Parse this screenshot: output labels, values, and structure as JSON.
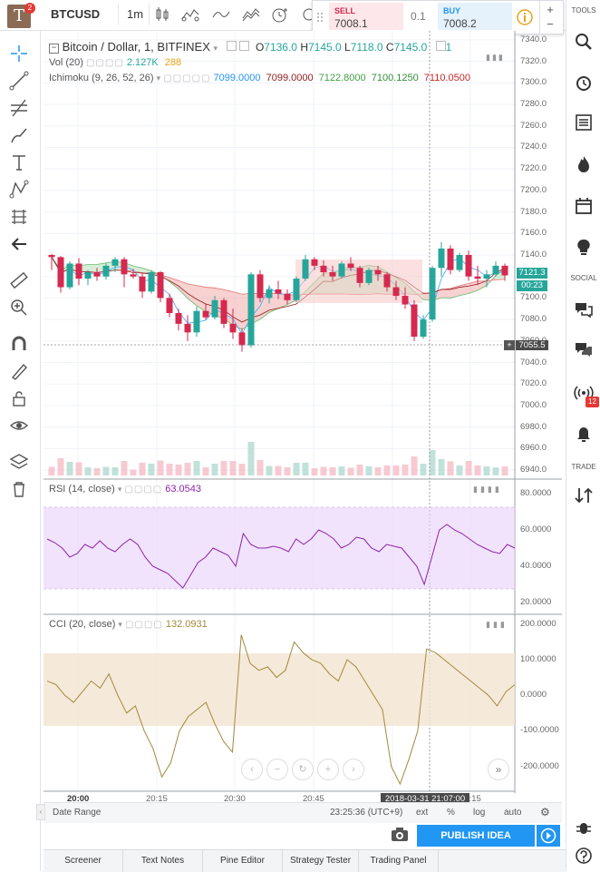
{
  "topbar": {
    "logo_letter": "T",
    "logo_badge": "2",
    "symbol": "BTCUSD",
    "interval": "1m",
    "trade": {
      "sell_label": "SELL",
      "sell_price": "7008.1",
      "spread": "0.1",
      "buy_label": "BUY",
      "buy_price": "7008.2"
    }
  },
  "main_legend": {
    "title": "Bitcoin / Dollar, 1, BITFINEX",
    "o_label": "O",
    "o_value": "7136.0",
    "h_label": "H",
    "h_value": "7145.0",
    "l_label": "L",
    "l_value": "7118.0",
    "c_label": "C",
    "c_value": "7145.0",
    "count": "1"
  },
  "vol_legend": {
    "name": "Vol (20)",
    "v1": "2.127K",
    "v2": "288"
  },
  "ichimoku_legend": {
    "name": "Ichimoku (9, 26, 52, 26)",
    "v1": "7099.0000",
    "v2": "7099.0000",
    "v3": "7122.8000",
    "v4": "7100.1250",
    "v5": "7110.0500"
  },
  "rsi_legend": {
    "name": "RSI (14, close)",
    "value": "63.0543"
  },
  "cci_legend": {
    "name": "CCI (20, close)",
    "value": "132.0931"
  },
  "price_axis": {
    "ticks": [
      "7340.0",
      "7320.0",
      "7300.0",
      "7280.0",
      "7260.0",
      "7240.0",
      "7220.0",
      "7200.0",
      "7180.0",
      "7160.0",
      "7140.0",
      "7120.0",
      "7100.0",
      "7080.0",
      "7060.0",
      "7040.0",
      "7020.0",
      "7000.0",
      "6980.0",
      "6960.0",
      "6940.0"
    ],
    "last_price": "7121.3",
    "countdown": "00:23",
    "crosshair_price": "7055.5"
  },
  "rsi_axis": {
    "ticks": [
      "80.0000",
      "60.0000",
      "40.0000",
      "20.0000"
    ]
  },
  "cci_axis": {
    "ticks": [
      "200.0000",
      "100.0000",
      "0.0000",
      "-100.0000",
      "-200.0000"
    ]
  },
  "time_axis": {
    "ticks": [
      "20:00",
      "20:15",
      "20:30",
      "20:45",
      "21:15"
    ],
    "crosshair_time": "2018-03-31 21:07:00"
  },
  "bottombar": {
    "date_range": "Date Range",
    "clock": "23:25:36 (UTC+9)",
    "ext": "ext",
    "percent": "%",
    "log": "log",
    "auto": "auto"
  },
  "publish_label": "PUBLISH IDEA",
  "tabs": [
    "Screener",
    "Text Notes",
    "Pine Editor",
    "Strategy Tester",
    "Trading Panel"
  ],
  "right_sidebar": {
    "tools_label": "TOOLS",
    "social_label": "SOCIAL",
    "trade_label": "TRADE",
    "stream_badge": "12"
  },
  "colors": {
    "up": "#26a69a",
    "down": "#d6294f",
    "accent": "#2196f3",
    "rsi": "#9c27b0",
    "cci": "#a18a3c"
  },
  "chart_data": {
    "type": "candlestick",
    "price_axis_range": [
      6935,
      7345
    ],
    "x_labels": [
      "20:00",
      "20:15",
      "20:30",
      "20:45",
      "21:15"
    ],
    "candles": [
      [
        7140,
        7141,
        7126,
        7138
      ],
      [
        7138,
        7139,
        7105,
        7110
      ],
      [
        7110,
        7134,
        7108,
        7132
      ],
      [
        7132,
        7137,
        7112,
        7118
      ],
      [
        7118,
        7126,
        7112,
        7124
      ],
      [
        7124,
        7128,
        7116,
        7120
      ],
      [
        7120,
        7132,
        7117,
        7130
      ],
      [
        7130,
        7138,
        7124,
        7136
      ],
      [
        7136,
        7138,
        7110,
        7122
      ],
      [
        7122,
        7127,
        7118,
        7120
      ],
      [
        7120,
        7124,
        7100,
        7106
      ],
      [
        7106,
        7126,
        7104,
        7124
      ],
      [
        7124,
        7125,
        7096,
        7100
      ],
      [
        7100,
        7104,
        7082,
        7086
      ],
      [
        7086,
        7090,
        7070,
        7076
      ],
      [
        7076,
        7084,
        7060,
        7068
      ],
      [
        7068,
        7092,
        7064,
        7088
      ],
      [
        7088,
        7094,
        7080,
        7082
      ],
      [
        7082,
        7102,
        7080,
        7098
      ],
      [
        7098,
        7100,
        7072,
        7076
      ],
      [
        7076,
        7090,
        7062,
        7068
      ],
      [
        7068,
        7072,
        7050,
        7056
      ],
      [
        7056,
        7124,
        7054,
        7122
      ],
      [
        7122,
        7126,
        7096,
        7100
      ],
      [
        7100,
        7112,
        7095,
        7108
      ],
      [
        7108,
        7116,
        7099,
        7104
      ],
      [
        7104,
        7108,
        7094,
        7098
      ],
      [
        7098,
        7120,
        7096,
        7118
      ],
      [
        7118,
        7140,
        7116,
        7136
      ],
      [
        7136,
        7138,
        7126,
        7130
      ],
      [
        7130,
        7135,
        7120,
        7124
      ],
      [
        7124,
        7130,
        7116,
        7120
      ],
      [
        7120,
        7134,
        7118,
        7132
      ],
      [
        7132,
        7138,
        7125,
        7128
      ],
      [
        7128,
        7130,
        7110,
        7114
      ],
      [
        7114,
        7128,
        7112,
        7126
      ],
      [
        7126,
        7130,
        7116,
        7122
      ],
      [
        7122,
        7124,
        7106,
        7110
      ],
      [
        7110,
        7116,
        7098,
        7102
      ],
      [
        7102,
        7110,
        7090,
        7094
      ],
      [
        7094,
        7098,
        7060,
        7064
      ],
      [
        7064,
        7084,
        7062,
        7080
      ],
      [
        7080,
        7130,
        7078,
        7128
      ],
      [
        7128,
        7152,
        7120,
        7146
      ],
      [
        7146,
        7149,
        7122,
        7126
      ],
      [
        7126,
        7142,
        7124,
        7140
      ],
      [
        7140,
        7144,
        7116,
        7120
      ],
      [
        7120,
        7130,
        7112,
        7118
      ],
      [
        7118,
        7126,
        7110,
        7122
      ],
      [
        7122,
        7134,
        7120,
        7130
      ],
      [
        7130,
        7132,
        7116,
        7121
      ]
    ],
    "volume_axis_min": 0,
    "rsi_range": [
      15,
      85
    ],
    "rsi_band": [
      30,
      70
    ],
    "rsi_values": [
      55,
      53,
      50,
      45,
      47,
      52,
      50,
      54,
      50,
      48,
      52,
      55,
      52,
      45,
      40,
      38,
      36,
      32,
      28,
      35,
      42,
      45,
      50,
      48,
      46,
      40,
      58,
      52,
      50,
      50,
      51,
      50,
      48,
      55,
      52,
      55,
      60,
      58,
      55,
      50,
      52,
      56,
      55,
      50,
      48,
      52,
      51,
      50,
      45,
      40,
      30,
      45,
      60,
      63,
      60,
      58,
      55,
      52,
      50,
      48,
      47,
      52,
      50
    ],
    "cci_range": [
      -265,
      215
    ],
    "cci_band": [
      -100,
      100
    ],
    "cci_values": [
      40,
      30,
      0,
      -20,
      10,
      40,
      20,
      60,
      0,
      -50,
      -30,
      -100,
      -150,
      -230,
      -190,
      -100,
      -60,
      -40,
      -20,
      -80,
      -130,
      -160,
      170,
      90,
      70,
      80,
      50,
      70,
      150,
      120,
      100,
      90,
      60,
      40,
      100,
      80,
      40,
      0,
      -40,
      -200,
      -250,
      -180,
      -100,
      130,
      120,
      100,
      80,
      60,
      40,
      20,
      0,
      -30,
      10,
      30
    ]
  }
}
